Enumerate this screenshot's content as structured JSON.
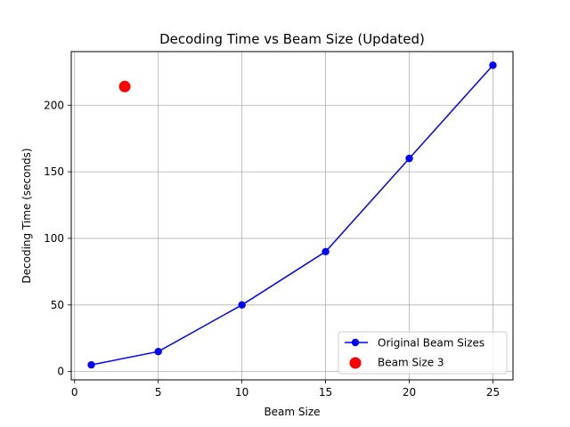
{
  "chart_data": {
    "type": "line",
    "title": "Decoding Time vs Beam Size (Updated)",
    "xlabel": "Beam Size",
    "ylabel": "Decoding Time (seconds)",
    "xlim": [
      -0.2,
      26.2
    ],
    "ylim": [
      -6.25,
      240.25
    ],
    "xticks": [
      0,
      5,
      10,
      15,
      20,
      25
    ],
    "yticks": [
      0,
      50,
      100,
      150,
      200
    ],
    "grid": true,
    "legend_position": "lower-right",
    "series": [
      {
        "name": "Original Beam Sizes",
        "type": "line",
        "marker": "circle",
        "color": "#0000ff",
        "x": [
          1,
          5,
          10,
          15,
          20,
          25
        ],
        "y": [
          5,
          15,
          50,
          90,
          160,
          230
        ]
      },
      {
        "name": "Beam Size 3",
        "type": "scatter",
        "marker": "circle",
        "color": "#ff0000",
        "x": [
          3
        ],
        "y": [
          214
        ]
      }
    ]
  }
}
